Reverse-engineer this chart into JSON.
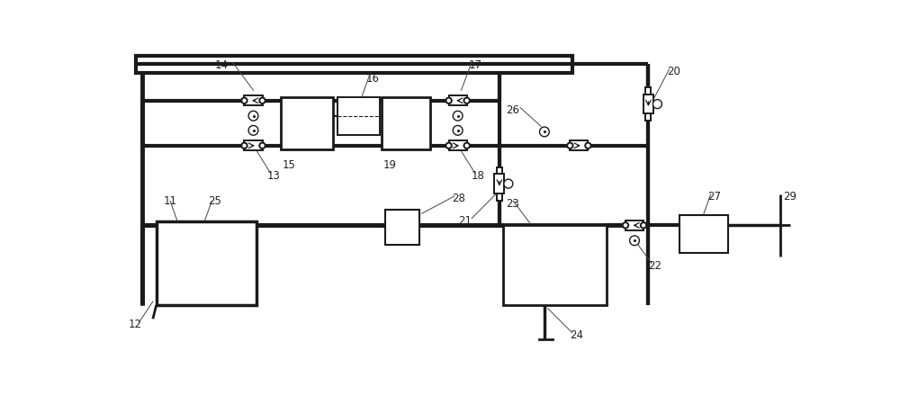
{
  "bg_color": "#ffffff",
  "lc": "#1a1a1a",
  "fs": 8.5
}
